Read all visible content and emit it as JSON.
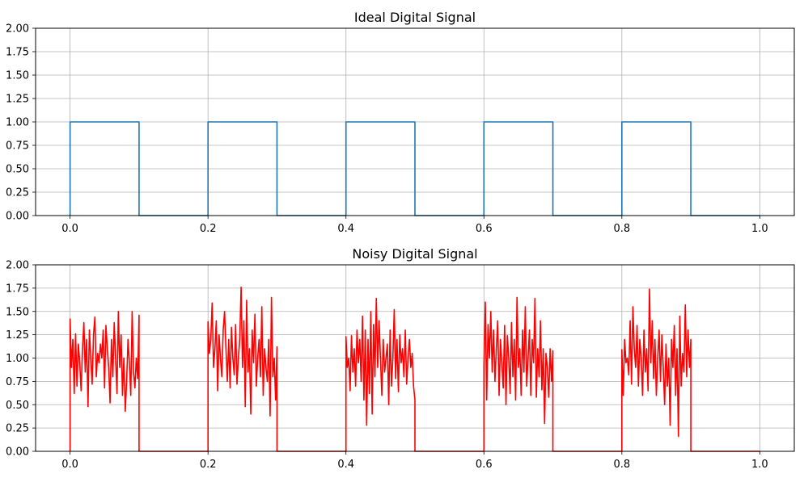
{
  "chart_data": [
    {
      "type": "line",
      "title": "Ideal Digital Signal",
      "xlabel": "",
      "ylabel": "",
      "xlim": [
        -0.05,
        1.05
      ],
      "ylim": [
        0,
        2
      ],
      "grid": true,
      "xticks": [
        0.0,
        0.2,
        0.4,
        0.6,
        0.8,
        1.0
      ],
      "xtick_labels": [
        "0.0",
        "0.2",
        "0.4",
        "0.6",
        "0.8",
        "1.0"
      ],
      "yticks": [
        0,
        0.25,
        0.5,
        0.75,
        1.0,
        1.25,
        1.5,
        1.75,
        2.0
      ],
      "ytick_labels": [
        "0.00",
        "0.25",
        "0.50",
        "0.75",
        "1.00",
        "1.25",
        "1.50",
        "1.75",
        "2.00"
      ],
      "series": [
        {
          "color": "#1f77b4",
          "kind": "square-pulses",
          "pulses": [
            [
              0.0,
              0.1
            ],
            [
              0.2,
              0.3
            ],
            [
              0.4,
              0.5
            ],
            [
              0.6,
              0.7
            ],
            [
              0.8,
              0.9
            ]
          ],
          "high": 1.0,
          "low": 0.0,
          "x_end": 1.0
        }
      ]
    },
    {
      "type": "line",
      "title": "Noisy Digital Signal",
      "xlabel": "",
      "ylabel": "",
      "xlim": [
        -0.05,
        1.05
      ],
      "ylim": [
        0,
        2
      ],
      "grid": true,
      "xticks": [
        0.0,
        0.2,
        0.4,
        0.6,
        0.8,
        1.0
      ],
      "xtick_labels": [
        "0.0",
        "0.2",
        "0.4",
        "0.6",
        "0.8",
        "1.0"
      ],
      "yticks": [
        0,
        0.25,
        0.5,
        0.75,
        1.0,
        1.25,
        1.5,
        1.75,
        2.0
      ],
      "ytick_labels": [
        "0.00",
        "0.25",
        "0.50",
        "0.75",
        "1.00",
        "1.25",
        "1.50",
        "1.75",
        "2.00"
      ],
      "series": [
        {
          "color": "#ff0000",
          "kind": "noisy-pulses",
          "pulses": [
            [
              0.0,
              0.1
            ],
            [
              0.2,
              0.3
            ],
            [
              0.4,
              0.5
            ],
            [
              0.6,
              0.7
            ],
            [
              0.8,
              0.9
            ]
          ],
          "low": 0.0,
          "x_end": 1.0,
          "pulse_values": [
            [
              1.42,
              0.9,
              1.2,
              0.62,
              1.26,
              0.7,
              1.15,
              0.95,
              0.65,
              1.1,
              1.38,
              0.85,
              1.2,
              0.48,
              1.3,
              1.0,
              0.72,
              1.25,
              1.44,
              0.8,
              1.05,
              0.95,
              1.15,
              1.0,
              1.3,
              0.68,
              1.35,
              1.1,
              0.9,
              0.52,
              1.2,
              0.8,
              1.38,
              1.0,
              0.62,
              1.5,
              0.9,
              1.25,
              0.6,
              1.0,
              0.43,
              0.75,
              1.2,
              0.95,
              0.6,
              1.5,
              0.85,
              0.68,
              1.0,
              0.78,
              1.46
            ],
            [
              1.39,
              1.05,
              1.2,
              1.59,
              0.9,
              1.1,
              1.4,
              0.65,
              1.25,
              1.0,
              0.8,
              1.3,
              1.5,
              1.1,
              0.75,
              1.2,
              0.68,
              1.33,
              1.0,
              0.82,
              1.36,
              0.72,
              1.0,
              1.2,
              1.76,
              0.9,
              1.4,
              0.48,
              1.62,
              0.85,
              1.1,
              0.4,
              1.3,
              0.95,
              1.47,
              0.7,
              1.0,
              1.2,
              0.8,
              1.55,
              0.6,
              1.1,
              0.9,
              0.75,
              1.2,
              0.38,
              1.65,
              0.8,
              1.0,
              0.55,
              1.12
            ],
            [
              1.23,
              0.9,
              1.0,
              0.65,
              1.24,
              0.85,
              1.1,
              0.7,
              1.3,
              0.95,
              1.2,
              0.75,
              1.45,
              0.55,
              1.3,
              0.28,
              1.2,
              0.62,
              1.5,
              0.4,
              1.36,
              0.8,
              1.64,
              0.9,
              1.4,
              1.0,
              0.6,
              1.2,
              0.85,
              1.0,
              1.15,
              0.5,
              1.3,
              0.7,
              1.0,
              1.52,
              0.78,
              1.2,
              0.64,
              1.25,
              0.95,
              1.1,
              0.8,
              1.3,
              0.72,
              1.0,
              1.2,
              0.9,
              1.05,
              0.7,
              0.55
            ],
            [
              0.92,
              1.6,
              0.55,
              1.36,
              1.0,
              1.5,
              0.85,
              1.3,
              0.75,
              1.1,
              1.4,
              0.6,
              1.2,
              0.95,
              0.68,
              1.35,
              0.5,
              1.24,
              1.0,
              0.62,
              1.38,
              0.8,
              1.2,
              0.55,
              1.65,
              0.9,
              1.1,
              0.6,
              1.3,
              0.85,
              1.55,
              0.7,
              1.0,
              1.3,
              0.6,
              1.2,
              0.95,
              1.64,
              0.58,
              1.1,
              0.8,
              1.4,
              0.66,
              1.1,
              0.3,
              1.05,
              0.9,
              0.58,
              1.1,
              0.75,
              1.08
            ],
            [
              1.09,
              0.6,
              1.2,
              0.95,
              1.0,
              0.82,
              1.4,
              0.72,
              1.55,
              1.1,
              0.9,
              1.35,
              0.7,
              1.2,
              1.0,
              0.6,
              1.3,
              0.85,
              1.1,
              0.65,
              1.74,
              0.95,
              1.4,
              0.78,
              1.2,
              0.6,
              1.0,
              1.3,
              0.75,
              1.25,
              0.9,
              0.5,
              1.15,
              0.7,
              1.0,
              0.28,
              1.2,
              0.9,
              1.35,
              0.6,
              1.1,
              0.16,
              1.45,
              0.7,
              1.05,
              0.85,
              1.57,
              0.8,
              1.3,
              0.9,
              1.2
            ]
          ]
        }
      ]
    }
  ]
}
